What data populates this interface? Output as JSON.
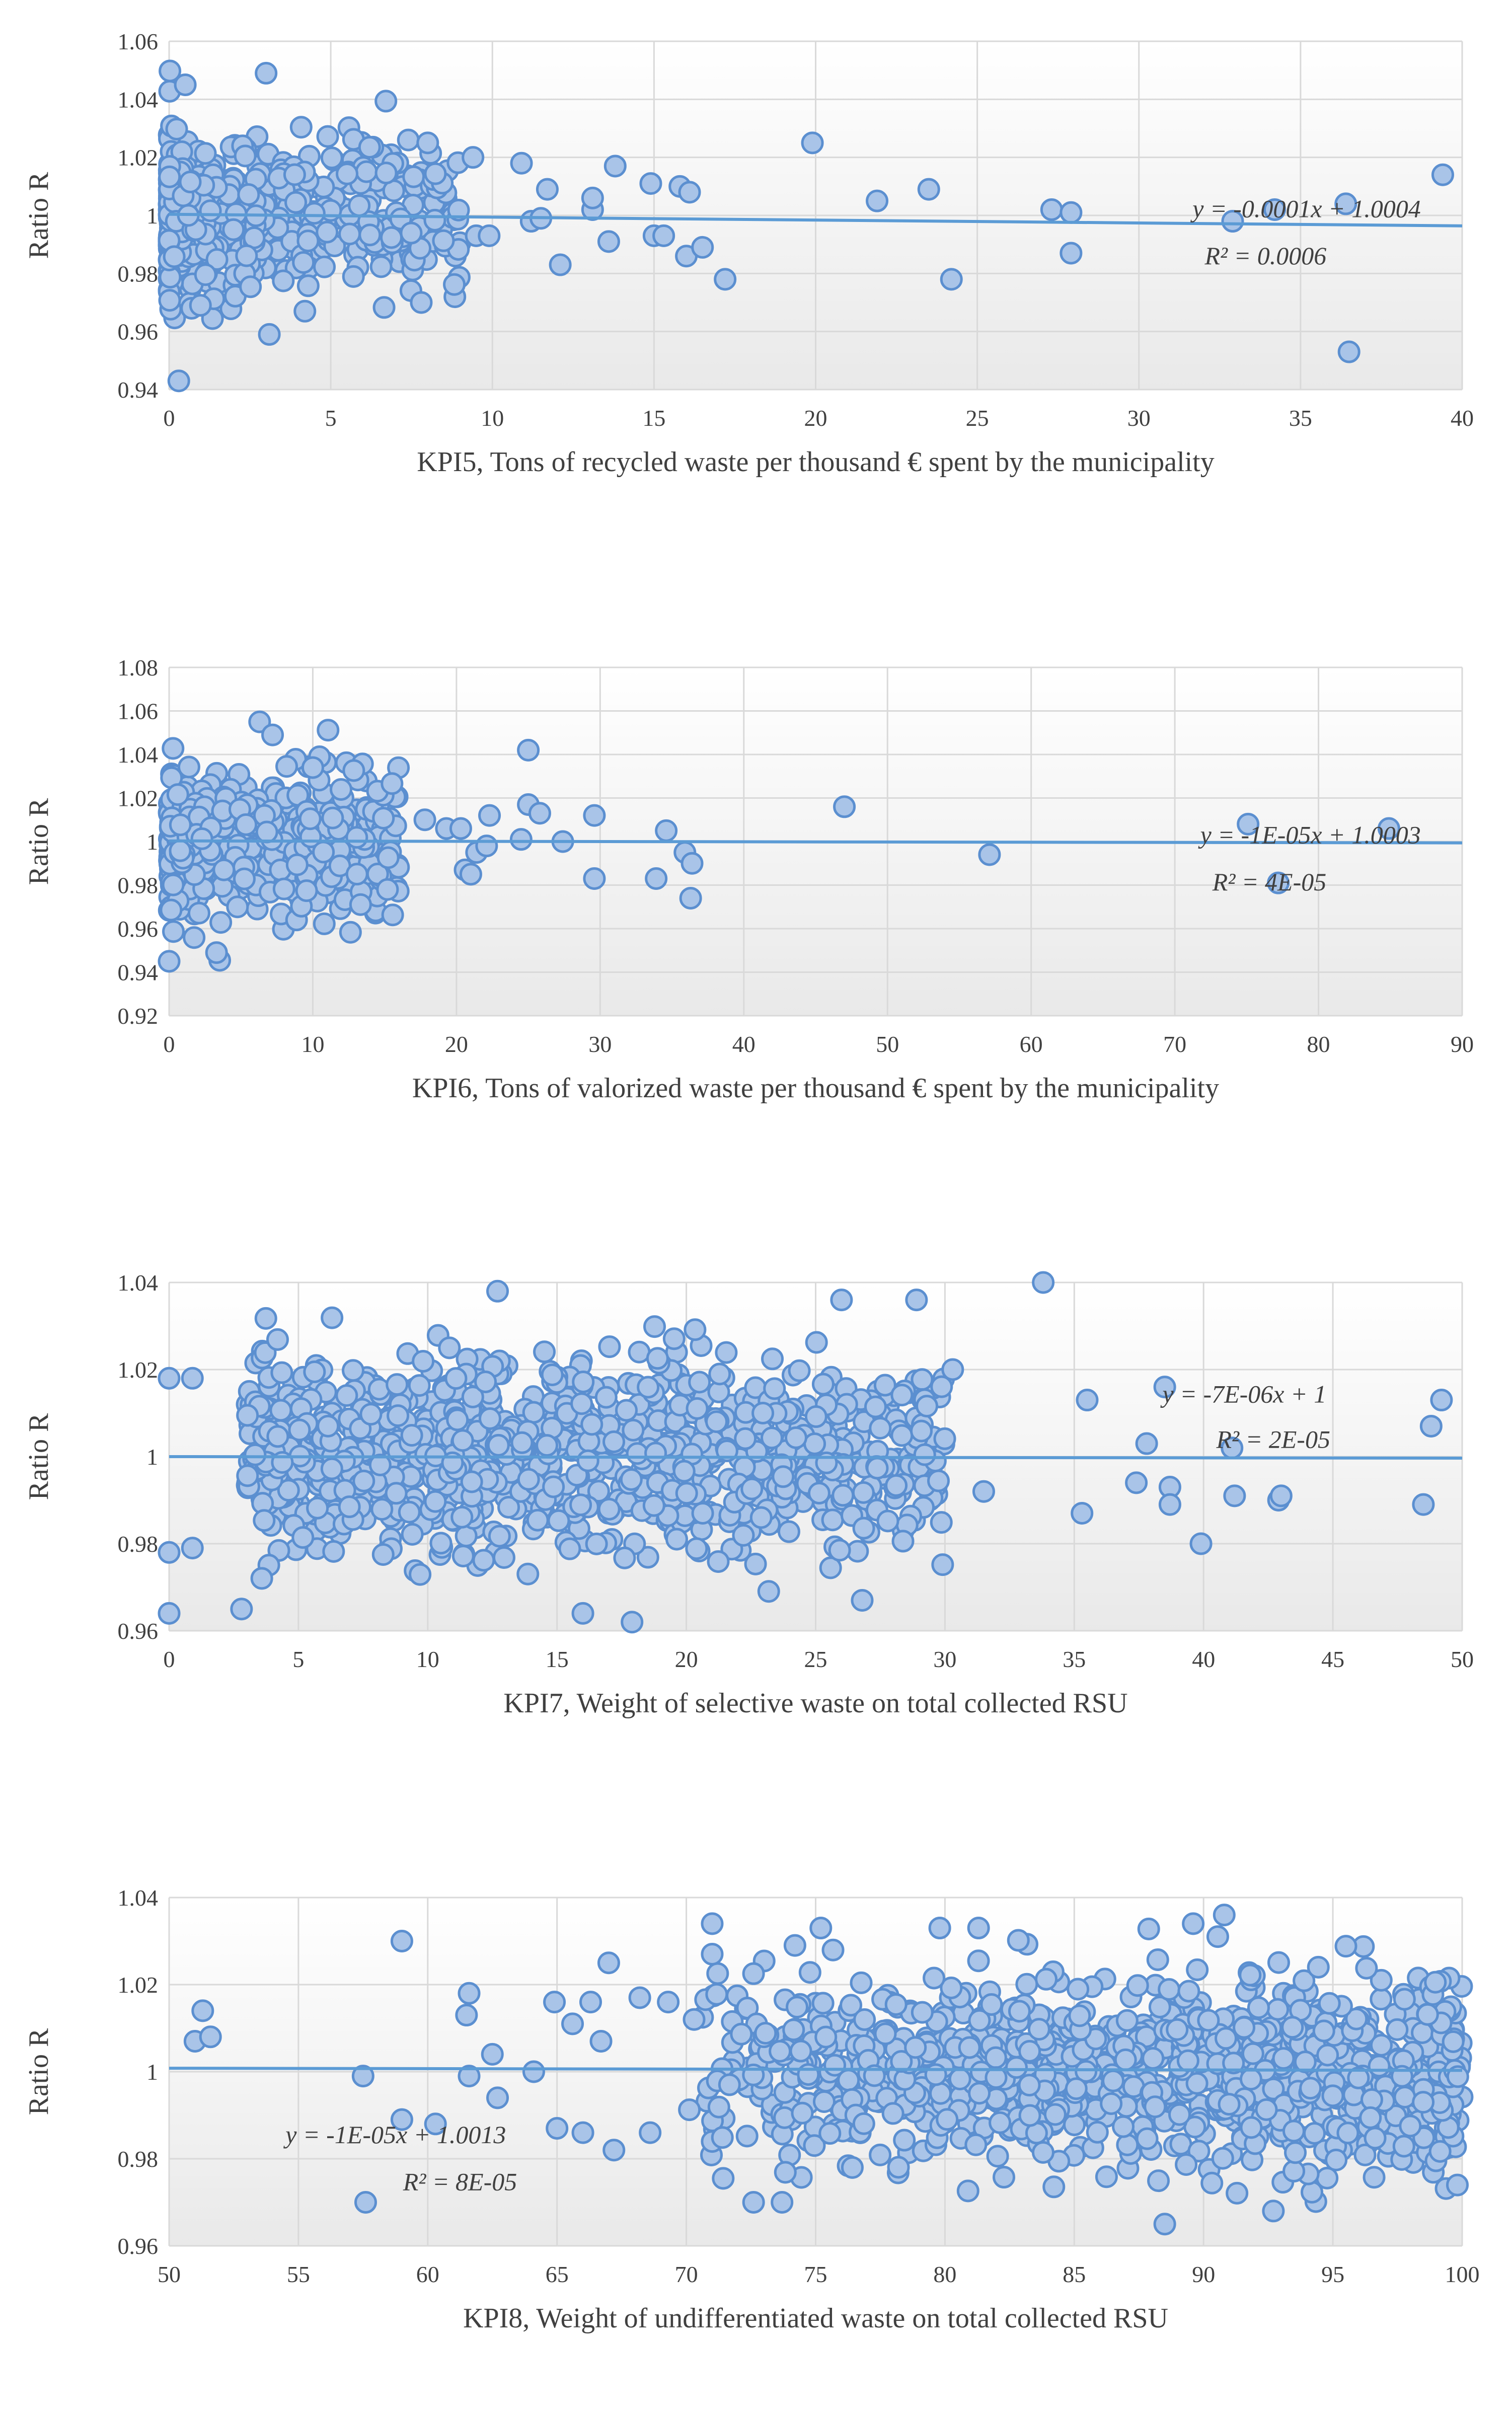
{
  "colors": {
    "marker_fill": "#a9c4e8",
    "marker_stroke": "#5b8fd0",
    "trendline": "#5b9bd5",
    "grid": "#d9d9d9",
    "text": "#404040"
  },
  "chart_data": [
    {
      "type": "scatter",
      "title": "",
      "xlabel": "KPI5, Tons of recycled waste per thousand € spent by the municipality",
      "ylabel": "Ratio R",
      "xlim": [
        0,
        40
      ],
      "ylim": [
        0.94,
        1.06
      ],
      "x_ticks": [
        0,
        5,
        10,
        15,
        20,
        25,
        30,
        35,
        40
      ],
      "y_ticks": [
        0.94,
        0.96,
        0.98,
        1,
        1.02,
        1.04,
        1.06
      ],
      "x_tick_labels": [
        "0",
        "5",
        "10",
        "15",
        "20",
        "25",
        "30",
        "35",
        "40"
      ],
      "y_tick_labels": [
        "0.94",
        "0.96",
        "0.98",
        "1",
        "1.02",
        "1.04",
        "1.06"
      ],
      "trendline": {
        "slope": -0.0001,
        "intercept": 1.0004
      },
      "equation": "y = -0.0001x + 1.0004",
      "r_squared": "R² = 0.0006",
      "equation_position": "right",
      "cluster": {
        "x_min": 0,
        "x_max": 9,
        "x_skew": 2.2,
        "y_sd": 0.014,
        "n": 560,
        "seed": 11
      },
      "points": [
        [
          0.3,
          0.943
        ],
        [
          0.5,
          1.045
        ],
        [
          3.0,
          1.049
        ],
        [
          4.2,
          0.967
        ],
        [
          3.1,
          0.959
        ],
        [
          7.4,
          1.026
        ],
        [
          8.0,
          1.025
        ],
        [
          7.8,
          0.97
        ],
        [
          9.4,
          1.02
        ],
        [
          9.5,
          0.993
        ],
        [
          9.9,
          0.993
        ],
        [
          10.9,
          1.018
        ],
        [
          11.2,
          0.998
        ],
        [
          11.5,
          0.999
        ],
        [
          11.7,
          1.009
        ],
        [
          12.1,
          0.983
        ],
        [
          13.1,
          1.002
        ],
        [
          13.1,
          1.006
        ],
        [
          13.6,
          0.991
        ],
        [
          13.8,
          1.017
        ],
        [
          14.9,
          1.011
        ],
        [
          15.0,
          0.993
        ],
        [
          15.3,
          0.993
        ],
        [
          15.8,
          1.01
        ],
        [
          16.0,
          0.986
        ],
        [
          16.1,
          1.008
        ],
        [
          16.5,
          0.989
        ],
        [
          17.2,
          0.978
        ],
        [
          19.9,
          1.025
        ],
        [
          21.9,
          1.005
        ],
        [
          23.5,
          1.009
        ],
        [
          24.2,
          0.978
        ],
        [
          27.3,
          1.002
        ],
        [
          27.9,
          0.987
        ],
        [
          27.9,
          1.001
        ],
        [
          32.9,
          0.998
        ],
        [
          34.2,
          1.002
        ],
        [
          36.4,
          1.004
        ],
        [
          36.5,
          0.953
        ],
        [
          39.4,
          1.014
        ]
      ]
    },
    {
      "type": "scatter",
      "title": "",
      "xlabel": "KPI6, Tons of valorized waste per thousand € spent by the municipality",
      "ylabel": "Ratio R",
      "xlim": [
        0,
        90
      ],
      "ylim": [
        0.92,
        1.08
      ],
      "x_ticks": [
        0,
        10,
        20,
        30,
        40,
        50,
        60,
        70,
        80,
        90
      ],
      "y_ticks": [
        0.92,
        0.94,
        0.96,
        0.98,
        1,
        1.02,
        1.04,
        1.06,
        1.08
      ],
      "x_tick_labels": [
        "0",
        "10",
        "20",
        "30",
        "40",
        "50",
        "60",
        "70",
        "80",
        "90"
      ],
      "y_tick_labels": [
        "0.92",
        "0.94",
        "0.96",
        "0.98",
        "1",
        "1.02",
        "1.04",
        "1.06",
        "1.08"
      ],
      "trendline": {
        "slope": -1e-05,
        "intercept": 1.0003
      },
      "equation": "y = -1E-05x + 1.0003",
      "r_squared": "R² = 4E-05",
      "equation_position": "right",
      "cluster": {
        "x_min": 0,
        "x_max": 16,
        "x_skew": 1.6,
        "y_sd": 0.015,
        "n": 520,
        "seed": 23
      },
      "points": [
        [
          0.0,
          0.945
        ],
        [
          3.3,
          0.949
        ],
        [
          6.3,
          1.055
        ],
        [
          7.2,
          1.049
        ],
        [
          10.0,
          1.034
        ],
        [
          15.2,
          0.978
        ],
        [
          17.8,
          1.01
        ],
        [
          19.3,
          1.006
        ],
        [
          20.3,
          1.006
        ],
        [
          20.6,
          0.987
        ],
        [
          21.0,
          0.985
        ],
        [
          21.4,
          0.995
        ],
        [
          22.3,
          1.012
        ],
        [
          22.1,
          0.998
        ],
        [
          24.5,
          1.001
        ],
        [
          25.0,
          1.042
        ],
        [
          25.0,
          1.017
        ],
        [
          25.8,
          1.013
        ],
        [
          27.4,
          1.0
        ],
        [
          29.6,
          1.012
        ],
        [
          29.6,
          0.983
        ],
        [
          33.9,
          0.983
        ],
        [
          34.6,
          1.005
        ],
        [
          35.9,
          0.995
        ],
        [
          36.4,
          0.99
        ],
        [
          36.3,
          0.974
        ],
        [
          47.0,
          1.016
        ],
        [
          57.1,
          0.994
        ],
        [
          75.1,
          1.008
        ],
        [
          77.2,
          0.981
        ],
        [
          84.9,
          1.006
        ]
      ]
    },
    {
      "type": "scatter",
      "title": "",
      "xlabel": "KPI7, Weight of selective waste on total collected RSU",
      "ylabel": "Ratio R",
      "xlim": [
        0,
        50
      ],
      "ylim": [
        0.96,
        1.04
      ],
      "x_ticks": [
        0,
        5,
        10,
        15,
        20,
        25,
        30,
        35,
        40,
        45,
        50
      ],
      "y_ticks": [
        0.96,
        0.98,
        1,
        1.02,
        1.04
      ],
      "x_tick_labels": [
        "0",
        "5",
        "10",
        "15",
        "20",
        "25",
        "30",
        "35",
        "40",
        "45",
        "50"
      ],
      "y_tick_labels": [
        "0.96",
        "0.98",
        "1",
        "1.02",
        "1.04"
      ],
      "trendline": {
        "slope": -7e-06,
        "intercept": 1.0
      },
      "equation": "y = -7E-06x + 1",
      "r_squared": "R² = 2E-05",
      "equation_position": "right-upper",
      "cluster": {
        "x_min": 3,
        "x_max": 30,
        "x_skew": 1.25,
        "y_sd": 0.0105,
        "n": 1100,
        "seed": 37
      },
      "points": [
        [
          0.0,
          0.964
        ],
        [
          0.0,
          0.978
        ],
        [
          0.0,
          1.018
        ],
        [
          0.9,
          1.018
        ],
        [
          0.9,
          0.979
        ],
        [
          2.8,
          0.965
        ],
        [
          12.7,
          1.038
        ],
        [
          16.0,
          0.964
        ],
        [
          17.9,
          0.962
        ],
        [
          26.0,
          1.036
        ],
        [
          26.8,
          0.967
        ],
        [
          28.9,
          1.036
        ],
        [
          30.3,
          1.02
        ],
        [
          31.5,
          0.992
        ],
        [
          33.8,
          1.04
        ],
        [
          35.5,
          1.013
        ],
        [
          35.3,
          0.987
        ],
        [
          37.8,
          1.003
        ],
        [
          38.5,
          1.016
        ],
        [
          38.7,
          0.993
        ],
        [
          38.7,
          0.989
        ],
        [
          39.9,
          0.98
        ],
        [
          41.1,
          1.002
        ],
        [
          41.2,
          0.991
        ],
        [
          42.9,
          0.99
        ],
        [
          43.0,
          0.991
        ],
        [
          48.5,
          0.989
        ],
        [
          48.8,
          1.007
        ],
        [
          49.2,
          1.013
        ],
        [
          37.4,
          0.994
        ]
      ]
    },
    {
      "type": "scatter",
      "title": "",
      "xlabel": "KPI8, Weight of undifferentiated  waste on total collected RSU",
      "ylabel": "Ratio R",
      "xlim": [
        50,
        100
      ],
      "ylim": [
        0.96,
        1.04
      ],
      "x_ticks": [
        50,
        55,
        60,
        65,
        70,
        75,
        80,
        85,
        90,
        95,
        100
      ],
      "y_ticks": [
        0.96,
        0.98,
        1,
        1.02,
        1.04
      ],
      "x_tick_labels": [
        "50",
        "55",
        "60",
        "65",
        "70",
        "75",
        "80",
        "85",
        "90",
        "95",
        "100"
      ],
      "y_tick_labels": [
        "0.96",
        "0.98",
        "1",
        "1.02",
        "1.04"
      ],
      "trendline": {
        "slope": -1e-05,
        "intercept": 1.0013
      },
      "equation": "y = -1E-05x + 1.0013",
      "r_squared": "R² = 8E-05",
      "equation_position": "left",
      "cluster": {
        "x_min": 70,
        "x_max": 100,
        "x_skew": 0.75,
        "y_sd": 0.0105,
        "n": 1100,
        "seed": 53
      },
      "points": [
        [
          51.0,
          1.007
        ],
        [
          51.3,
          1.014
        ],
        [
          51.6,
          1.008
        ],
        [
          57.6,
          0.97
        ],
        [
          57.5,
          0.999
        ],
        [
          59.0,
          1.03
        ],
        [
          59.0,
          0.989
        ],
        [
          60.3,
          0.988
        ],
        [
          61.6,
          0.999
        ],
        [
          61.6,
          1.018
        ],
        [
          61.5,
          1.013
        ],
        [
          62.5,
          1.004
        ],
        [
          62.7,
          0.994
        ],
        [
          64.1,
          1.0
        ],
        [
          64.9,
          1.016
        ],
        [
          65.0,
          0.987
        ],
        [
          65.6,
          1.011
        ],
        [
          66.0,
          0.986
        ],
        [
          66.3,
          1.016
        ],
        [
          66.7,
          1.007
        ],
        [
          67.0,
          1.025
        ],
        [
          67.2,
          0.982
        ],
        [
          68.2,
          1.017
        ],
        [
          68.6,
          0.986
        ],
        [
          69.3,
          1.016
        ],
        [
          70.3,
          1.012
        ],
        [
          71.0,
          1.034
        ],
        [
          71.0,
          1.027
        ],
        [
          72.6,
          0.97
        ],
        [
          73.7,
          0.97
        ],
        [
          74.2,
          1.029
        ],
        [
          75.2,
          1.033
        ],
        [
          79.8,
          1.033
        ],
        [
          81.3,
          1.033
        ],
        [
          88.5,
          0.965
        ],
        [
          89.6,
          1.034
        ],
        [
          90.8,
          1.036
        ],
        [
          92.7,
          0.968
        ]
      ]
    }
  ]
}
